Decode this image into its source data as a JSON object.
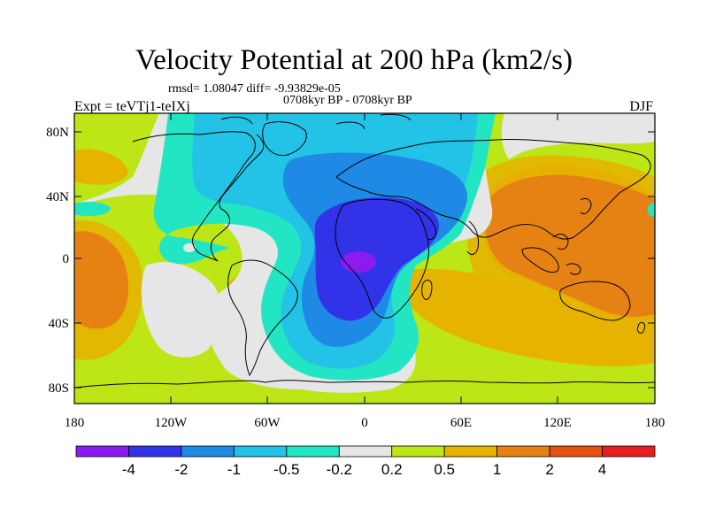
{
  "title": "Velocity Potential at 200 hPa (km2/s)",
  "stats_line": "rmsd= 1.08047 diff= -9.93829e-05",
  "subtitle": "0708kyr BP - 0708kyr BP",
  "left_label": "Expt = teVTj1-teIXj",
  "right_label": "DJF",
  "map": {
    "projection": "cylindrical-equidistant",
    "lon_range": [
      -180,
      180
    ],
    "lat_range": [
      -90,
      90
    ],
    "lon_ticks": [
      "180",
      "120W",
      "60W",
      "0",
      "60E",
      "120E",
      "180"
    ],
    "lat_ticks": [
      "80N",
      "40N",
      "0",
      "40S",
      "80S"
    ]
  },
  "colorbar": {
    "boundary_labels": [
      "-4",
      "-2",
      "-1",
      "-0.5",
      "-0.2",
      "0.2",
      "0.5",
      "1",
      "2",
      "4"
    ],
    "colors": [
      "#8a1cf0",
      "#3232e8",
      "#1e8ae6",
      "#22c3e6",
      "#22e6c3",
      "#e6e6e6",
      "#bde616",
      "#e6b400",
      "#e68214",
      "#e65014",
      "#e61e1e"
    ]
  },
  "colors": {
    "very_low": "#8a1cf0",
    "low": "#3232e8",
    "mid_low": "#1e8ae6",
    "cyan": "#22c3e6",
    "teal": "#22e6c3",
    "neutral": "#e6e6e6",
    "lime": "#bde616",
    "gold": "#e6b400",
    "orange": "#e68214"
  }
}
